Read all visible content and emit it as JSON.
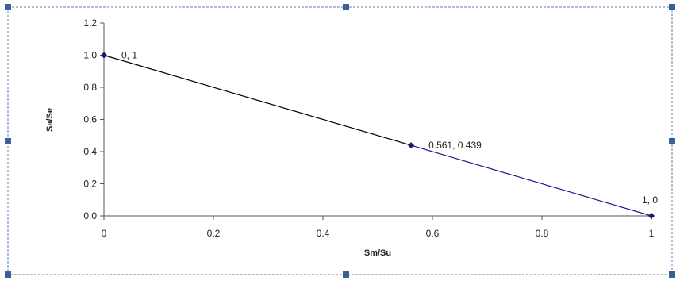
{
  "chart_data": {
    "type": "scatter",
    "title": "",
    "xlabel": "Sm/Su",
    "ylabel": "Sa/Se",
    "xlim": [
      0,
      1
    ],
    "ylim": [
      0,
      1.2
    ],
    "x_ticks": [
      "0",
      "0.2",
      "0.4",
      "0.6",
      "0.8",
      "1"
    ],
    "y_ticks": [
      "0.0",
      "0.2",
      "0.4",
      "0.6",
      "0.8",
      "1.0",
      "1.2"
    ],
    "grid": false,
    "legend": "none",
    "series": [
      {
        "points": [
          {
            "x": 0,
            "y": 1,
            "label": "0, 1"
          },
          {
            "x": 0.561,
            "y": 0.439,
            "label": "0.561, 0.439"
          },
          {
            "x": 1,
            "y": 0,
            "label": "1, 0"
          }
        ],
        "segment_colors": [
          "#000000",
          "#1a1a8c"
        ],
        "marker_color": "#1a1a6e"
      }
    ],
    "border_color": "#5b7fb5",
    "handle_color": "#3d5f99"
  }
}
